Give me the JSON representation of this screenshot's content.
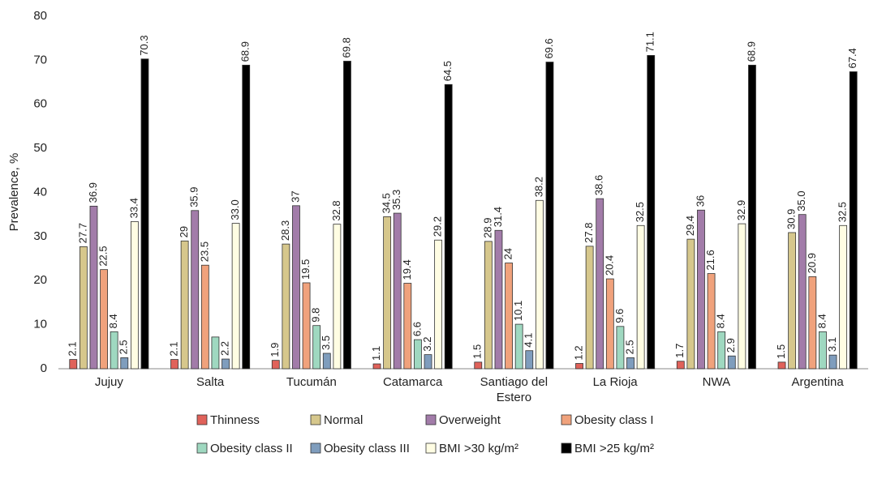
{
  "chart_data": {
    "type": "bar",
    "y_label": "Prevalence, %",
    "categories": [
      "Jujuy",
      "Salta",
      "Tucumán",
      "Catamarca",
      "Santiago del Estero",
      "La Rioja",
      "NWA",
      "Argentina"
    ],
    "ylim": [
      0,
      80
    ],
    "yticks": [
      0,
      10,
      20,
      30,
      40,
      50,
      60,
      70,
      80
    ],
    "grid": false,
    "series": [
      {
        "name": "Thinness",
        "color": "#e0625a",
        "values": [
          2.1,
          2.1,
          1.9,
          1.1,
          1.5,
          1.2,
          1.7,
          1.5
        ]
      },
      {
        "name": "Normal",
        "color": "#d6c78c",
        "values": [
          27.7,
          29,
          28.3,
          34.5,
          28.9,
          27.8,
          29.4,
          30.9
        ]
      },
      {
        "name": "Overweight",
        "color": "#a27ca9",
        "values": [
          36.9,
          35.9,
          37,
          35.3,
          31.4,
          38.6,
          36,
          35.0
        ],
        "value_labels": [
          "36.9",
          "35.9",
          "37",
          "35.3",
          "31.4",
          "38.6",
          "36",
          "35.0"
        ]
      },
      {
        "name": "Obesity class I",
        "color": "#f0a27c",
        "values": [
          22.5,
          23.5,
          19.5,
          19.4,
          24,
          20.4,
          21.6,
          20.9
        ]
      },
      {
        "name": "Obesity class II",
        "color": "#9fd8c0",
        "values": [
          8.4,
          7.2,
          9.8,
          6.6,
          10.1,
          9.6,
          8.4,
          8.4
        ],
        "value_labels": [
          "8.4",
          null,
          "9.8",
          "6.6",
          "10.1",
          "9.6",
          "8.4",
          "8.4"
        ]
      },
      {
        "name": "Obesity class III",
        "color": "#7f9dbd",
        "values": [
          2.5,
          2.2,
          3.5,
          3.2,
          4.1,
          2.5,
          2.9,
          3.1
        ]
      },
      {
        "name": "BMI >30 kg/m²",
        "color": "#fffde3",
        "values": [
          33.4,
          33.0,
          32.8,
          29.2,
          38.2,
          32.5,
          32.9,
          32.5
        ],
        "value_labels": [
          "33.4",
          "33.0",
          "32.8",
          "29.2",
          "38.2",
          "32.5",
          "32.9",
          "32.5"
        ]
      },
      {
        "name": "BMI >25 kg/m²",
        "color": "#000000",
        "values": [
          70.3,
          68.9,
          69.8,
          64.5,
          69.6,
          71.1,
          68.9,
          67.4
        ]
      }
    ]
  }
}
